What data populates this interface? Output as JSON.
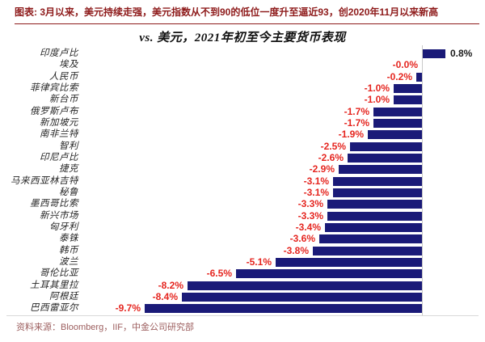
{
  "header": {
    "caption": "图表: 3月以来，美元持续走强，美元指数从不到90的低位一度升至逼近93，创2020年11月以来新高",
    "caption_color": "#8e1b1b"
  },
  "chart_data": {
    "type": "bar",
    "orientation": "horizontal",
    "title": "vs. 美元，2021年初至今主要货币表现",
    "unit": "%",
    "categories": [
      "印度卢比",
      "埃及",
      "人民币",
      "菲律宾比索",
      "新台币",
      "俄罗斯卢布",
      "新加坡元",
      "南非兰特",
      "智利",
      "印尼卢比",
      "捷克",
      "马来西亚林吉特",
      "秘鲁",
      "墨西哥比索",
      "新兴市场",
      "匈牙利",
      "泰铢",
      "韩币",
      "波兰",
      "哥伦比亚",
      "土耳其里拉",
      "阿根廷",
      "巴西雷亚尔"
    ],
    "values": [
      0.8,
      -0.0,
      -0.2,
      -1.0,
      -1.0,
      -1.7,
      -1.7,
      -1.9,
      -2.5,
      -2.6,
      -2.9,
      -3.1,
      -3.1,
      -3.3,
      -3.3,
      -3.4,
      -3.6,
      -3.8,
      -5.1,
      -6.5,
      -8.2,
      -8.4,
      -9.7
    ],
    "labels": [
      "0.8%",
      "-0.0%",
      "-0.2%",
      "-1.0%",
      "-1.0%",
      "-1.7%",
      "-1.7%",
      "-1.9%",
      "-2.5%",
      "-2.6%",
      "-2.9%",
      "-3.1%",
      "-3.1%",
      "-3.3%",
      "-3.3%",
      "-3.4%",
      "-3.6%",
      "-3.8%",
      "-5.1%",
      "-6.5%",
      "-8.2%",
      "-8.4%",
      "-9.7%"
    ],
    "xlim": [
      -10.5,
      1.5
    ],
    "grid": false,
    "zero_axis_line": true,
    "bar_color": "#1a1a78",
    "negative_label_color": "#e52620",
    "positive_label_color": "#1a1a1a"
  },
  "footer": {
    "source": "资料来源：Bloomberg，IIF，中金公司研究部",
    "source_color": "#9c5e5e"
  }
}
